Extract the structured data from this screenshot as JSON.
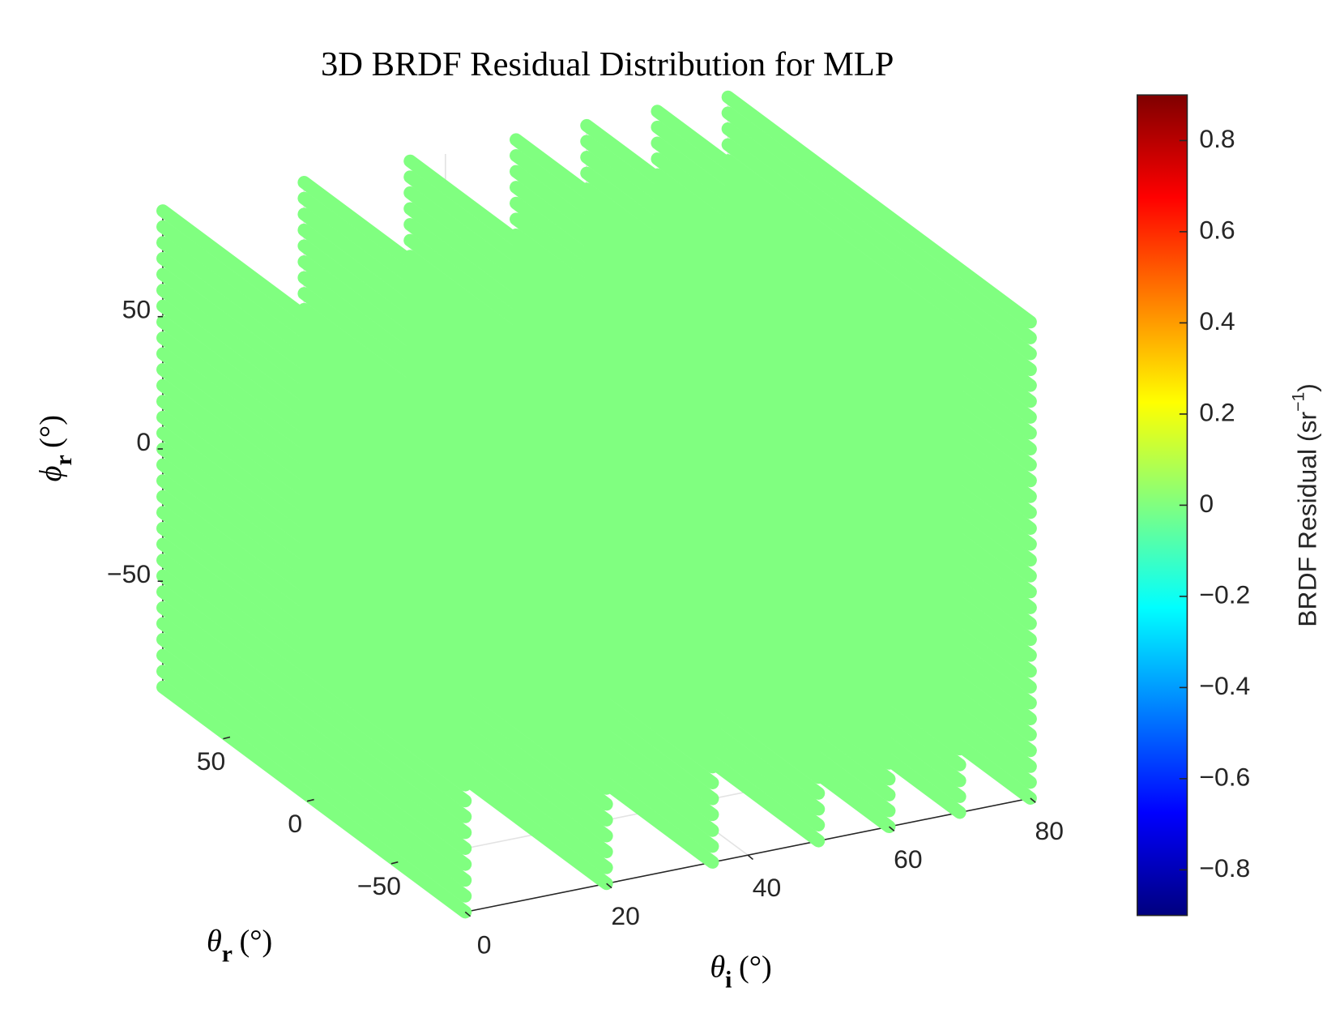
{
  "chart_data": {
    "type": "scatter3d",
    "title": "3D BRDF Residual Distribution for MLP",
    "xlabel": {
      "symbol": "θ",
      "sub": "i",
      "unit": "(°)"
    },
    "ylabel": {
      "symbol": "θ",
      "sub": "r",
      "unit": "(°)"
    },
    "zlabel": {
      "symbol": "ϕ",
      "sub": "r",
      "unit": "(°)"
    },
    "colorbar_label": {
      "text": "BRDF Residual (sr",
      "sup": "−1",
      "close": ")"
    },
    "x": [
      0,
      20,
      35,
      50,
      60,
      70,
      80
    ],
    "z": [
      -90,
      -84,
      -78,
      -72,
      -66,
      -60,
      -54,
      -48,
      -42,
      -36,
      -30,
      -24,
      -18,
      -12,
      -6,
      0,
      6,
      12,
      18,
      24,
      30,
      36,
      42,
      48,
      54,
      60,
      66,
      72,
      78,
      84,
      90
    ],
    "residual": 0,
    "xlim": [
      0,
      80
    ],
    "ylim": [
      -90,
      90
    ],
    "zlim": [
      -90,
      90
    ],
    "clim": [
      -0.9,
      0.9
    ],
    "xticks": [
      0,
      20,
      40,
      60,
      80
    ],
    "yticks": [
      {
        "value": -50,
        "label": "−50"
      },
      0,
      50
    ],
    "zticks": [
      {
        "value": -50,
        "label": "−50"
      },
      0,
      50
    ],
    "cticks": [
      {
        "value": -0.8,
        "label": "−0.8"
      },
      {
        "value": -0.6,
        "label": "−0.6"
      },
      {
        "value": -0.4,
        "label": "−0.4"
      },
      {
        "value": -0.2,
        "label": "−0.2"
      },
      0,
      0.2,
      0.4,
      0.6,
      0.8
    ],
    "colormap": "jet",
    "grid": true
  }
}
